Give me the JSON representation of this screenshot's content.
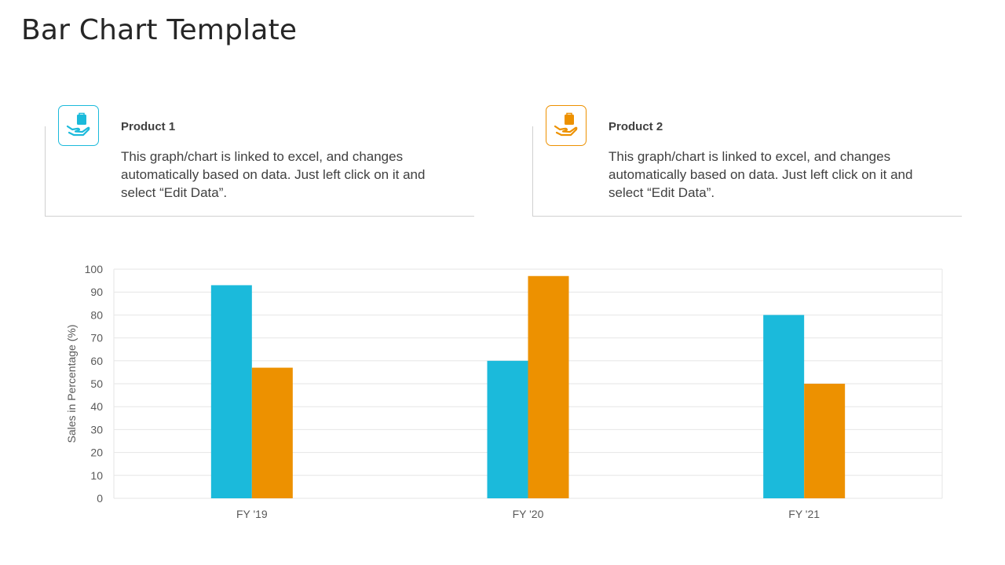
{
  "title": "Bar Chart Template",
  "products": [
    {
      "title": "Product 1",
      "description": "This graph/chart is linked to excel, and changes automatically based on data.  Just left click on it and select “Edit Data”.",
      "icon": "hand-holding-bag-icon",
      "color": "#1bbadb"
    },
    {
      "title": "Product 2",
      "description": "This graph/chart is linked to excel, and changes automatically based on data.  Just left click on it and select “Edit Data”.",
      "icon": "hand-holding-bag-icon",
      "color": "#ed9100"
    }
  ],
  "chart_data": {
    "type": "bar",
    "categories": [
      "FY '19",
      "FY '20",
      "FY '21"
    ],
    "series": [
      {
        "values": [
          93,
          60,
          80
        ],
        "color": "#1bbadb"
      },
      {
        "values": [
          57,
          97,
          50
        ],
        "color": "#ed9100"
      }
    ],
    "ylabel": "Sales in Percentage  (%)",
    "ylim": [
      0,
      100
    ],
    "yticks": [
      0,
      10,
      20,
      30,
      40,
      50,
      60,
      70,
      80,
      90,
      100
    ],
    "grid": true,
    "legend": "none"
  }
}
